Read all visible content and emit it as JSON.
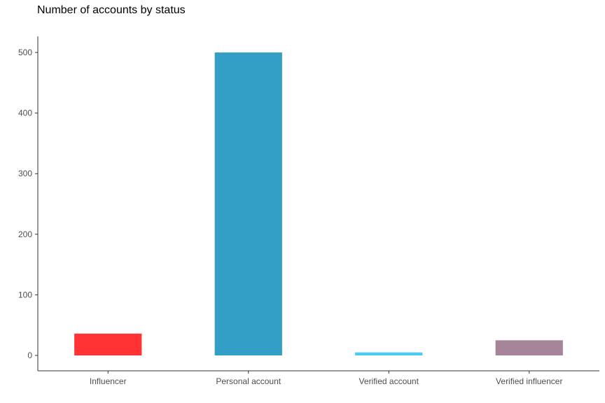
{
  "chart_data": {
    "type": "bar",
    "title": "Number of accounts by status",
    "xlabel": "",
    "ylabel": "",
    "categories": [
      "Influencer",
      "Personal account",
      "Verified account",
      "Verified influencer"
    ],
    "values": [
      36,
      500,
      5,
      25
    ],
    "colors": [
      "#FF3333",
      "#339FC6",
      "#4DCCF3",
      "#A68499"
    ],
    "ylim": [
      0,
      525
    ],
    "yticks": [
      0,
      100,
      200,
      300,
      400,
      500
    ],
    "grid": false,
    "legend": "none"
  }
}
